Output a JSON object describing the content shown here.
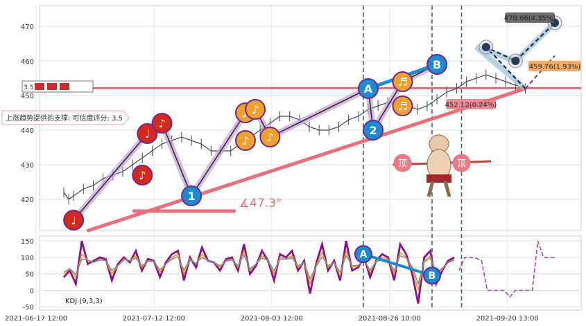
{
  "chart_data": [
    {
      "type": "line",
      "panel": "price",
      "ylim": [
        411,
        476
      ],
      "y_ticks": [
        420,
        430,
        440,
        450,
        460,
        470
      ],
      "grid": true,
      "x_index_range": [
        0,
        100
      ],
      "series": [
        {
          "values": [
            [
              0,
              422
            ],
            [
              1,
              420
            ],
            [
              2,
              421
            ],
            [
              4,
              423
            ],
            [
              6,
              424
            ],
            [
              8,
              426
            ],
            [
              10,
              427
            ],
            [
              12,
              428
            ],
            [
              14,
              430
            ],
            [
              16,
              432
            ],
            [
              18,
              434
            ],
            [
              20,
              436
            ],
            [
              22,
              437
            ],
            [
              24,
              438
            ],
            [
              26,
              437
            ],
            [
              28,
              436
            ],
            [
              30,
              434
            ],
            [
              32,
              434
            ],
            [
              34,
              434
            ],
            [
              36,
              436
            ],
            [
              38,
              438
            ],
            [
              40,
              440
            ],
            [
              42,
              442
            ],
            [
              44,
              444
            ],
            [
              46,
              444
            ],
            [
              48,
              443
            ],
            [
              50,
              441
            ],
            [
              52,
              440
            ],
            [
              54,
              440
            ],
            [
              56,
              441
            ],
            [
              58,
              443
            ],
            [
              60,
              444
            ],
            [
              62,
              446
            ],
            [
              64,
              447
            ],
            [
              66,
              448
            ],
            [
              68,
              448
            ],
            [
              70,
              447
            ],
            [
              72,
              446
            ],
            [
              74,
              447
            ],
            [
              76,
              449
            ],
            [
              78,
              451
            ],
            [
              80,
              452
            ],
            [
              82,
              454
            ],
            [
              84,
              455
            ],
            [
              86,
              456
            ],
            [
              88,
              455
            ],
            [
              90,
              454
            ],
            [
              92,
              453
            ],
            [
              94,
              452
            ]
          ]
        }
      ],
      "reference_line": {
        "y": 452.12
      },
      "trend_angle_label": "∡47.3°",
      "support_label": "上涨趋势提供的支撑: 可信度评分: 3.5",
      "support_value_label": "3.5",
      "price_targets": [
        {
          "label": "470.66(4.35%)",
          "y": 470.66,
          "color": "#555555"
        },
        {
          "label": "459.76(1.93%)",
          "y": 459.76,
          "color": "#f0a050"
        },
        {
          "label": "452.12(0.24%)",
          "y": 452.12,
          "color": "#e87a84"
        }
      ],
      "pattern_markers": [
        {
          "label": "♩",
          "x": 2,
          "y": 414,
          "color": "#d42a1e"
        },
        {
          "label": "♪",
          "x": 16,
          "y": 427,
          "color": "#d42a1e"
        },
        {
          "label": "♩",
          "x": 17,
          "y": 439,
          "color": "#d42a1e"
        },
        {
          "label": "♪",
          "x": 20,
          "y": 442,
          "color": "#d42a1e"
        },
        {
          "label": "1",
          "x": 26,
          "y": 421,
          "color": "#1f8ad0"
        },
        {
          "label": "♪",
          "x": 37,
          "y": 445,
          "color": "#f0a030"
        },
        {
          "label": "♪",
          "x": 39,
          "y": 446,
          "color": "#f0a030"
        },
        {
          "label": "♪",
          "x": 37,
          "y": 437,
          "color": "#f0a030"
        },
        {
          "label": "♪",
          "x": 42,
          "y": 438,
          "color": "#f0a030"
        },
        {
          "label": "A",
          "x": 62,
          "y": 452,
          "color": "#1f8ad0"
        },
        {
          "label": "2",
          "x": 63,
          "y": 440,
          "color": "#1f8ad0"
        },
        {
          "label": "♬",
          "x": 69,
          "y": 454,
          "color": "#f0a030"
        },
        {
          "label": "♬",
          "x": 69,
          "y": 447,
          "color": "#f0a030"
        },
        {
          "label": "B",
          "x": 76,
          "y": 459,
          "color": "#1f8ad0"
        }
      ],
      "top_badges": [
        {
          "label": "顶",
          "x": 69,
          "color": "#e87a84"
        },
        {
          "label": "顶",
          "x": 81,
          "color": "#e87a84"
        }
      ],
      "vertical_markers": [
        61,
        75,
        81
      ]
    },
    {
      "type": "line",
      "panel": "indicator",
      "label": "KDJ (9,3,3)",
      "ylim": [
        -60,
        165
      ],
      "y_ticks": [
        -50,
        0,
        50,
        100,
        150
      ],
      "x_ticks": [
        "2021-06-17 12:00",
        "2021-07-12 12:00",
        "2021-08-03 12:00",
        "2021-08-26 10:00",
        "2021-09-20 13:00"
      ],
      "series": [
        {
          "values": [
            40,
            60,
            20,
            150,
            80,
            90,
            100,
            95,
            30,
            80,
            100,
            85,
            120,
            60,
            95,
            90,
            40,
            85,
            110,
            120,
            30,
            100,
            70,
            130,
            90,
            85,
            60,
            95,
            100,
            60,
            140,
            50,
            75,
            120,
            90,
            30,
            110,
            100,
            120,
            60,
            90,
            -10,
            80,
            140,
            60,
            90,
            30,
            150,
            60,
            70,
            100,
            40,
            90,
            110,
            100,
            30,
            140,
            110,
            50,
            -40,
            100,
            120,
            20,
            60,
            90,
            100
          ]
        },
        {
          "values": [
            50,
            65,
            40,
            110,
            90,
            85,
            95,
            90,
            50,
            75,
            95,
            90,
            105,
            70,
            90,
            88,
            55,
            80,
            100,
            110,
            50,
            95,
            80,
            110,
            90,
            85,
            70,
            90,
            95,
            70,
            120,
            60,
            80,
            105,
            90,
            50,
            100,
            95,
            105,
            70,
            85,
            20,
            75,
            115,
            70,
            85,
            45,
            120,
            70,
            75,
            95,
            55,
            88,
            100,
            95,
            50,
            115,
            100,
            65,
            0,
            90,
            105,
            40,
            65,
            85,
            95
          ]
        },
        {
          "values": [
            55,
            66,
            48,
            95,
            92,
            86,
            92,
            90,
            60,
            75,
            92,
            90,
            98,
            75,
            88,
            88,
            62,
            80,
            95,
            102,
            62,
            92,
            82,
            100,
            90,
            85,
            75,
            88,
            92,
            75,
            108,
            65,
            80,
            98,
            90,
            60,
            95,
            95,
            98,
            75,
            84,
            35,
            72,
            102,
            75,
            84,
            55,
            105,
            75,
            76,
            90,
            62,
            86,
            95,
            92,
            60,
            105,
            98,
            72,
            20,
            86,
            98,
            52,
            68,
            84,
            92
          ]
        }
      ],
      "projection": {
        "values": [
          60,
          100,
          100,
          98,
          90,
          0,
          0,
          0,
          0,
          -20,
          0,
          0,
          0,
          0,
          150,
          100,
          100,
          100
        ]
      },
      "markers": [
        {
          "label": "A",
          "x": 61,
          "y": 110
        },
        {
          "label": "B",
          "x": 75,
          "y": 45
        }
      ]
    }
  ]
}
